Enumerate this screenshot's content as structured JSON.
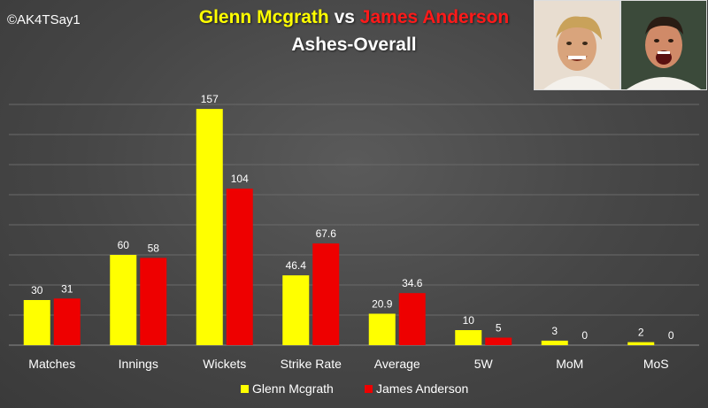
{
  "credit": "©AK4TSay1",
  "title": {
    "player1": "Glenn Mcgrath",
    "vs": "vs",
    "player2": "James Anderson",
    "subtitle": "Ashes-Overall"
  },
  "colors": {
    "player1": "#ffff00",
    "player2": "#ee0000",
    "gridline": "#6a6a6a",
    "text": "#ffffff"
  },
  "photos": [
    {
      "name": "Glenn Mcgrath photo"
    },
    {
      "name": "James Anderson photo"
    }
  ],
  "chart_data": {
    "type": "bar",
    "title": "Ashes-Overall",
    "categories": [
      "Matches",
      "Innings",
      "Wickets",
      "Strike Rate",
      "Average",
      "5W",
      "MoM",
      "MoS"
    ],
    "series": [
      {
        "name": "Glenn Mcgrath",
        "color": "#ffff00",
        "values": [
          30,
          60,
          157,
          46.4,
          20.9,
          10,
          3,
          2
        ],
        "labels": [
          "30",
          "60",
          "157",
          "46.4",
          "20.9",
          "10",
          "3",
          "2"
        ]
      },
      {
        "name": "James Anderson",
        "color": "#ee0000",
        "values": [
          31,
          58,
          104,
          67.6,
          34.6,
          5,
          0,
          0
        ],
        "labels": [
          "31",
          "58",
          "104",
          "67.6",
          "34.6",
          "5",
          "0",
          "0"
        ]
      }
    ],
    "ylim": [
      0,
      160
    ],
    "grid": true,
    "legend": "bottom"
  }
}
